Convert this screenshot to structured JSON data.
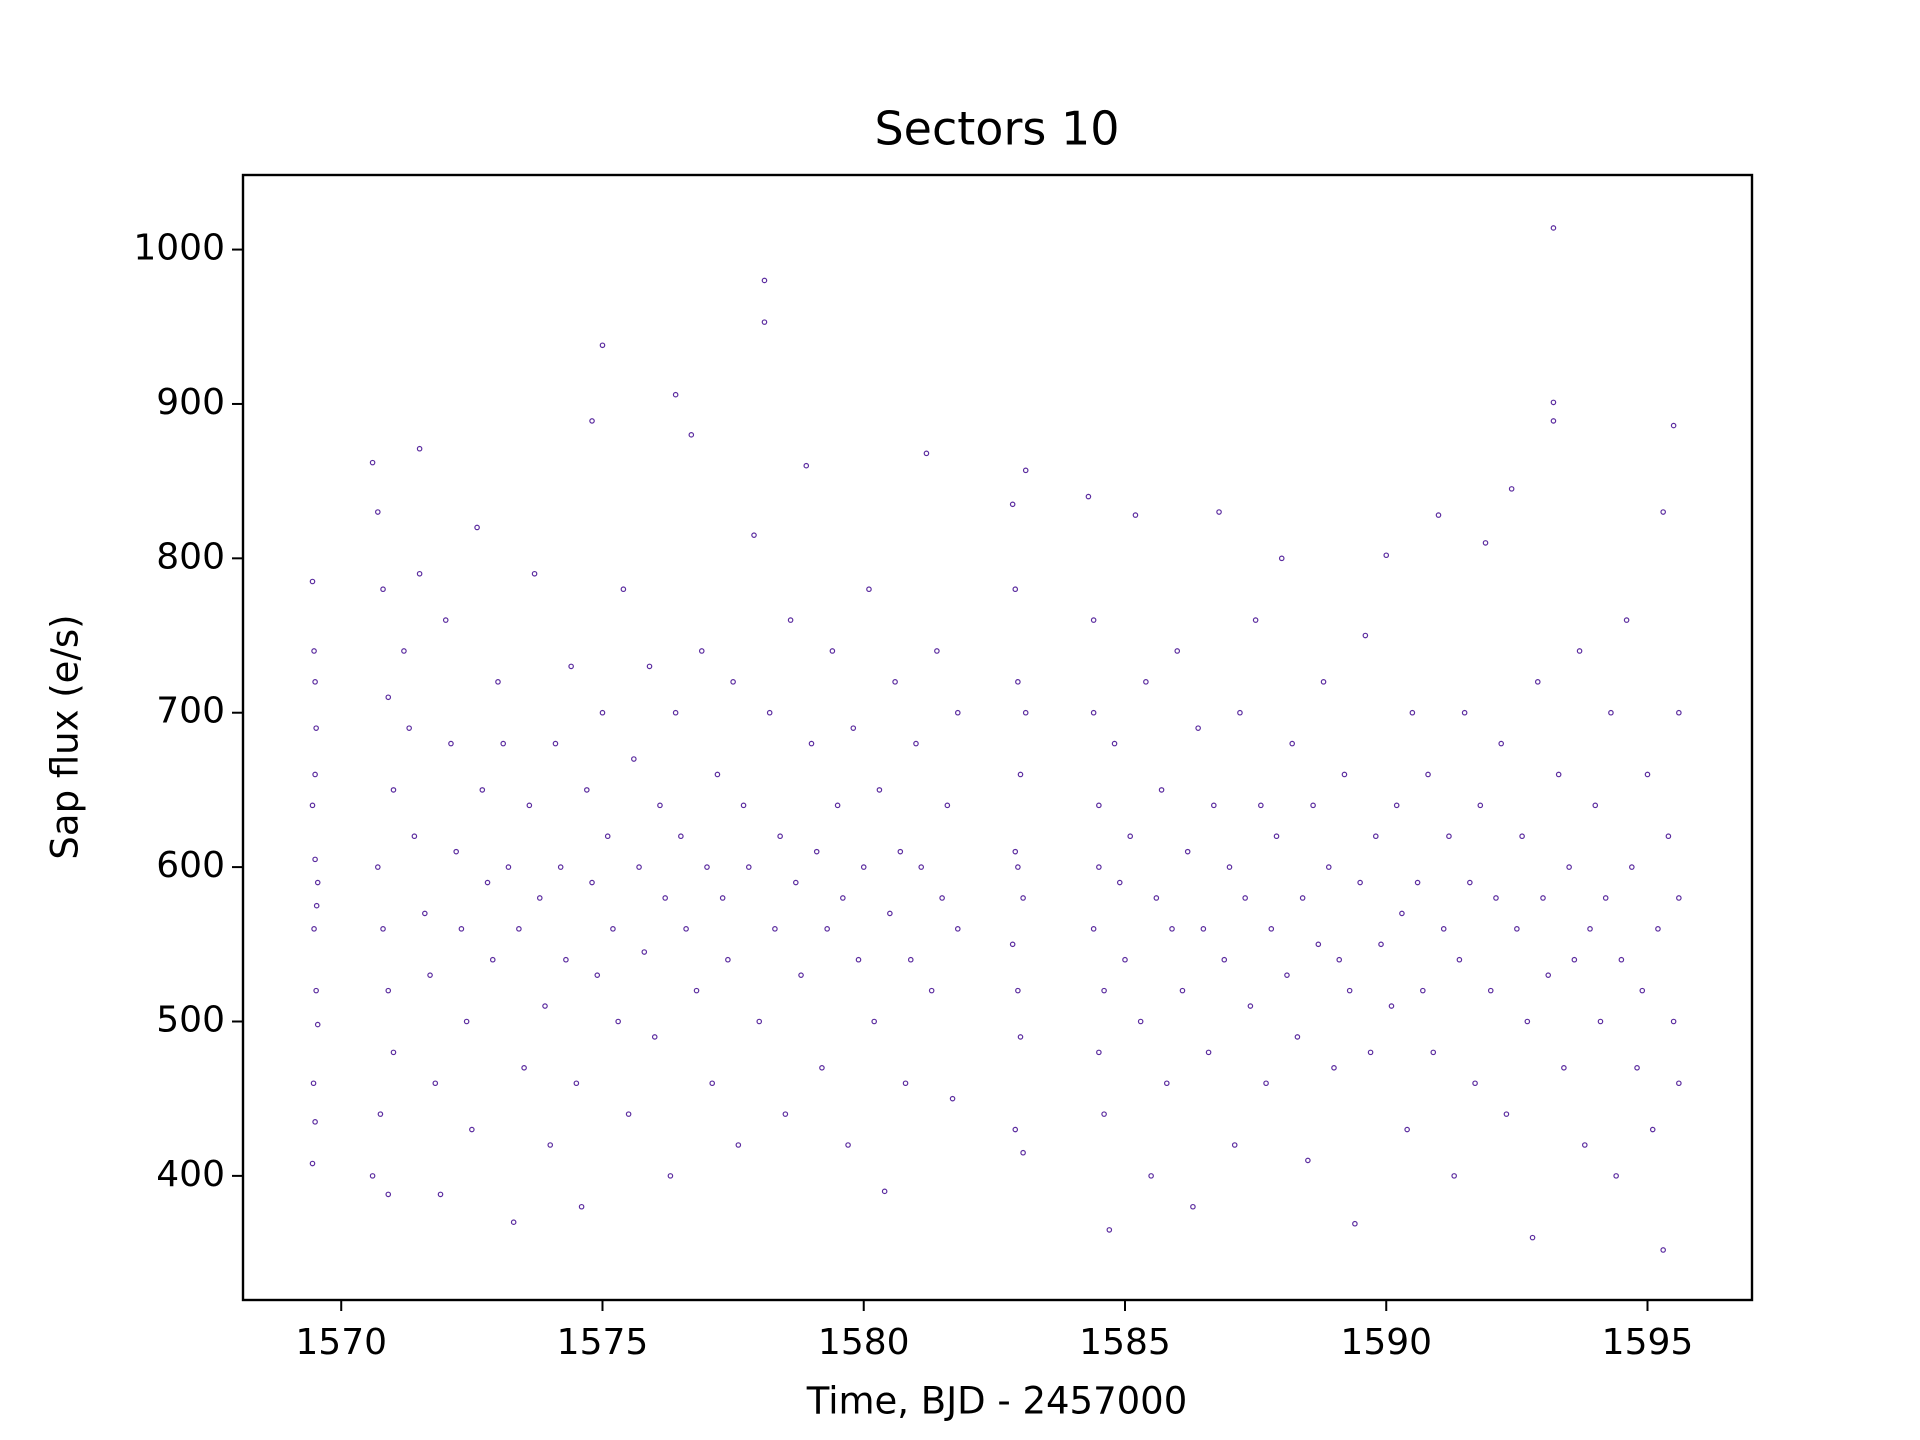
{
  "chart_data": {
    "type": "scatter",
    "title": "Sectors 10",
    "xlabel": "Time, BJD - 2457000",
    "ylabel": "Sap flux (e/s)",
    "color": "#5b2c9f",
    "grid": false,
    "xlim": [
      1568.12,
      1597.0
    ],
    "ylim": [
      319.6,
      1048.3
    ],
    "xticks": [
      1570,
      1575,
      1580,
      1585,
      1590,
      1595
    ],
    "yticks": [
      400,
      500,
      600,
      700,
      800,
      900,
      1000
    ],
    "x": [
      1569.45,
      1569.48,
      1569.5,
      1569.52,
      1569.45,
      1569.5,
      1569.55,
      1569.48,
      1569.52,
      1569.55,
      1569.47,
      1569.5,
      1569.45,
      1569.53,
      1569.5,
      1570.6,
      1570.7,
      1570.8,
      1570.9,
      1571.0,
      1570.7,
      1570.8,
      1570.9,
      1571.0,
      1570.75,
      1570.6,
      1570.9,
      1571.2,
      1571.3,
      1571.4,
      1571.5,
      1571.5,
      1571.6,
      1571.7,
      1571.8,
      1571.9,
      1572.0,
      1572.1,
      1572.2,
      1572.3,
      1572.4,
      1572.5,
      1572.6,
      1572.7,
      1572.8,
      1572.9,
      1573.0,
      1573.1,
      1573.2,
      1573.3,
      1573.4,
      1573.5,
      1573.6,
      1573.7,
      1573.8,
      1573.9,
      1574.0,
      1574.1,
      1574.2,
      1574.3,
      1574.4,
      1574.5,
      1574.6,
      1574.7,
      1574.8,
      1574.8,
      1574.9,
      1575.0,
      1575.0,
      1575.1,
      1575.2,
      1575.3,
      1575.4,
      1575.5,
      1575.6,
      1575.7,
      1575.8,
      1575.9,
      1576.0,
      1576.1,
      1576.2,
      1576.3,
      1576.4,
      1576.4,
      1576.5,
      1576.6,
      1576.7,
      1576.8,
      1576.9,
      1577.0,
      1577.1,
      1577.2,
      1577.3,
      1577.4,
      1577.5,
      1577.6,
      1577.7,
      1577.8,
      1577.9,
      1578.0,
      1578.1,
      1578.1,
      1578.2,
      1578.3,
      1578.4,
      1578.5,
      1578.6,
      1578.7,
      1578.8,
      1578.9,
      1579.0,
      1579.1,
      1579.2,
      1579.3,
      1579.4,
      1579.5,
      1579.6,
      1579.7,
      1579.8,
      1579.9,
      1580.0,
      1580.1,
      1580.2,
      1580.3,
      1580.4,
      1580.5,
      1580.6,
      1580.7,
      1580.8,
      1580.9,
      1581.0,
      1581.1,
      1581.2,
      1581.3,
      1581.4,
      1581.5,
      1581.6,
      1581.7,
      1581.8,
      1581.8,
      1582.85,
      1582.9,
      1582.95,
      1583.0,
      1582.9,
      1583.05,
      1582.85,
      1582.95,
      1583.0,
      1582.9,
      1583.05,
      1583.1,
      1583.1,
      1582.95,
      1584.3,
      1584.4,
      1584.4,
      1584.5,
      1584.5,
      1584.4,
      1584.6,
      1584.5,
      1584.6,
      1584.7,
      1584.8,
      1584.9,
      1585.0,
      1585.1,
      1585.2,
      1585.3,
      1585.4,
      1585.5,
      1585.6,
      1585.7,
      1585.8,
      1585.9,
      1586.0,
      1586.1,
      1586.2,
      1586.3,
      1586.4,
      1586.5,
      1586.6,
      1586.7,
      1586.8,
      1586.9,
      1587.0,
      1587.1,
      1587.2,
      1587.3,
      1587.4,
      1587.5,
      1587.6,
      1587.7,
      1587.8,
      1587.9,
      1588.0,
      1588.1,
      1588.2,
      1588.3,
      1588.4,
      1588.5,
      1588.6,
      1588.7,
      1588.8,
      1588.9,
      1589.0,
      1589.1,
      1589.2,
      1589.3,
      1589.4,
      1589.5,
      1589.6,
      1589.7,
      1589.8,
      1589.9,
      1590.0,
      1590.1,
      1590.2,
      1590.3,
      1590.4,
      1590.5,
      1590.6,
      1590.7,
      1590.8,
      1590.9,
      1591.0,
      1591.1,
      1591.2,
      1591.3,
      1591.4,
      1591.5,
      1591.6,
      1591.7,
      1591.8,
      1591.9,
      1592.0,
      1592.1,
      1592.2,
      1592.3,
      1592.4,
      1592.5,
      1592.6,
      1592.7,
      1592.8,
      1592.9,
      1593.0,
      1593.1,
      1593.2,
      1593.2,
      1593.2,
      1593.3,
      1593.4,
      1593.5,
      1593.6,
      1593.7,
      1593.8,
      1593.9,
      1594.0,
      1594.1,
      1594.2,
      1594.3,
      1594.4,
      1594.5,
      1594.6,
      1594.7,
      1594.8,
      1594.9,
      1595.0,
      1595.1,
      1595.2,
      1595.3,
      1595.3,
      1595.4,
      1595.5,
      1595.5,
      1595.6,
      1595.6,
      1595.6
    ],
    "values": [
      785,
      740,
      720,
      690,
      640,
      605,
      590,
      560,
      520,
      498,
      460,
      435,
      408,
      575,
      660,
      862,
      830,
      780,
      710,
      650,
      600,
      560,
      520,
      480,
      440,
      400,
      388,
      740,
      690,
      620,
      871,
      790,
      570,
      530,
      460,
      388,
      760,
      680,
      610,
      560,
      500,
      430,
      820,
      650,
      590,
      540,
      720,
      680,
      600,
      370,
      560,
      470,
      640,
      790,
      580,
      510,
      420,
      680,
      600,
      540,
      730,
      460,
      380,
      650,
      889,
      590,
      530,
      938,
      700,
      620,
      560,
      500,
      780,
      440,
      670,
      600,
      545,
      730,
      490,
      640,
      580,
      400,
      906,
      700,
      620,
      560,
      880,
      520,
      740,
      600,
      460,
      660,
      580,
      540,
      720,
      420,
      640,
      600,
      815,
      500,
      980,
      953,
      700,
      560,
      620,
      440,
      760,
      590,
      530,
      860,
      680,
      610,
      470,
      560,
      740,
      640,
      580,
      420,
      690,
      540,
      600,
      780,
      500,
      650,
      390,
      570,
      720,
      610,
      460,
      540,
      680,
      600,
      868,
      520,
      740,
      580,
      640,
      450,
      700,
      560,
      835,
      780,
      720,
      660,
      610,
      580,
      550,
      520,
      490,
      430,
      415,
      857,
      700,
      600,
      840,
      760,
      700,
      640,
      600,
      560,
      520,
      480,
      440,
      365,
      680,
      590,
      540,
      620,
      828,
      500,
      720,
      400,
      580,
      650,
      460,
      560,
      740,
      520,
      610,
      380,
      690,
      560,
      480,
      640,
      830,
      540,
      600,
      420,
      700,
      580,
      510,
      760,
      640,
      460,
      560,
      620,
      800,
      530,
      680,
      490,
      580,
      410,
      640,
      550,
      720,
      600,
      470,
      540,
      660,
      520,
      369,
      590,
      750,
      480,
      620,
      550,
      802,
      510,
      640,
      570,
      430,
      700,
      590,
      520,
      660,
      480,
      828,
      560,
      620,
      400,
      540,
      700,
      590,
      460,
      640,
      810,
      520,
      580,
      680,
      440,
      845,
      560,
      620,
      500,
      360,
      720,
      580,
      530,
      1014,
      901,
      889,
      660,
      470,
      600,
      540,
      740,
      420,
      560,
      640,
      500,
      580,
      700,
      400,
      540,
      760,
      600,
      470,
      520,
      660,
      430,
      560,
      352,
      830,
      620,
      886,
      500,
      700,
      580,
      460
    ]
  }
}
